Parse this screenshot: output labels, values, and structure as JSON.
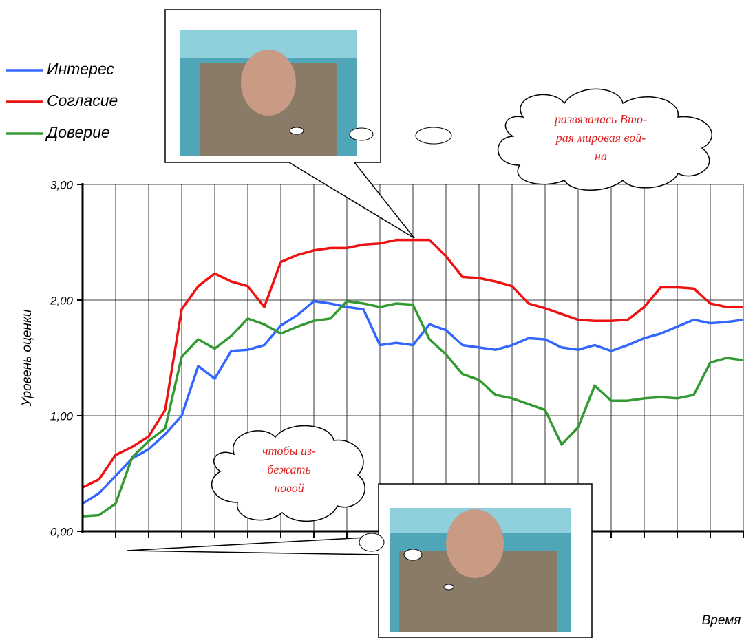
{
  "chart_data": {
    "type": "line",
    "xlabel": "Время",
    "ylabel": "Уровень оценки",
    "ylim": [
      0,
      3
    ],
    "yticks": [
      {
        "value": 0,
        "label": "0,00"
      },
      {
        "value": 1,
        "label": "1,00"
      },
      {
        "value": 2,
        "label": "2,00"
      },
      {
        "value": 3,
        "label": "3,00"
      }
    ],
    "grid": true,
    "legend": "top-left",
    "categories": [
      null,
      null,
      null,
      null,
      null,
      null,
      null,
      null,
      null,
      null,
      null,
      null,
      null,
      null,
      null,
      null,
      null,
      null,
      null,
      null,
      null,
      null,
      null,
      null,
      null,
      null,
      null,
      null,
      null,
      null,
      null,
      null,
      null,
      null,
      null,
      null,
      null,
      null,
      null,
      null,
      null
    ],
    "series": [
      {
        "name": "Интерес",
        "color": "#3366ff",
        "values": [
          0.24,
          0.33,
          0.48,
          0.63,
          0.71,
          0.84,
          1.0,
          1.43,
          1.32,
          1.56,
          1.57,
          1.61,
          1.78,
          1.87,
          1.99,
          1.97,
          1.94,
          1.92,
          1.61,
          1.63,
          1.61,
          1.79,
          1.74,
          1.61,
          1.59,
          1.57,
          1.61,
          1.67,
          1.66,
          1.59,
          1.57,
          1.61,
          1.56,
          1.61,
          1.67,
          1.71,
          1.77,
          1.83,
          1.8,
          1.81,
          1.83
        ]
      },
      {
        "name": "Согласие",
        "color": "#ee1111",
        "values": [
          0.38,
          0.45,
          0.66,
          0.73,
          0.82,
          1.05,
          1.92,
          2.12,
          2.23,
          2.16,
          2.12,
          1.94,
          2.33,
          2.39,
          2.43,
          2.45,
          2.45,
          2.48,
          2.49,
          2.52,
          2.52,
          2.52,
          2.38,
          2.2,
          2.19,
          2.16,
          2.12,
          1.97,
          1.93,
          1.88,
          1.83,
          1.82,
          1.82,
          1.83,
          1.94,
          2.11,
          2.11,
          2.1,
          1.97,
          1.94,
          1.94
        ]
      },
      {
        "name": "Доверие",
        "color": "#339933",
        "values": [
          0.13,
          0.14,
          0.24,
          0.64,
          0.78,
          0.89,
          1.51,
          1.66,
          1.58,
          1.69,
          1.84,
          1.79,
          1.71,
          1.77,
          1.82,
          1.84,
          1.99,
          1.97,
          1.94,
          1.97,
          1.96,
          1.66,
          1.53,
          1.36,
          1.31,
          1.18,
          1.15,
          1.1,
          1.05,
          0.75,
          0.9,
          1.26,
          1.13,
          1.13,
          1.15,
          1.16,
          1.15,
          1.18,
          1.46,
          1.5,
          1.48
        ]
      }
    ],
    "annotations": [
      {
        "lines": [
          "развязалась Вто-",
          "рая мировая вой-",
          "на"
        ]
      },
      {
        "lines": [
          "чтобы из-",
          "бежать",
          "новой"
        ]
      }
    ]
  }
}
